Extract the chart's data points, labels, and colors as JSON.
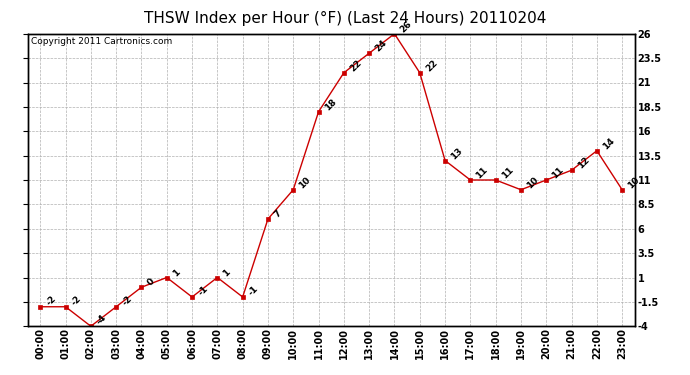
{
  "title": "THSW Index per Hour (°F) (Last 24 Hours) 20110204",
  "copyright": "Copyright 2011 Cartronics.com",
  "hours": [
    "00:00",
    "01:00",
    "02:00",
    "03:00",
    "04:00",
    "05:00",
    "06:00",
    "07:00",
    "08:00",
    "09:00",
    "10:00",
    "11:00",
    "12:00",
    "13:00",
    "14:00",
    "15:00",
    "16:00",
    "17:00",
    "18:00",
    "19:00",
    "20:00",
    "21:00",
    "22:00",
    "23:00"
  ],
  "values": [
    -2,
    -2,
    -4,
    -2,
    0,
    1,
    -1,
    1,
    -1,
    7,
    10,
    18,
    22,
    24,
    26,
    22,
    13,
    11,
    11,
    10,
    11,
    12,
    14,
    10
  ],
  "line_color": "#cc0000",
  "marker_color": "#cc0000",
  "bg_color": "#ffffff",
  "grid_color": "#b0b0b0",
  "ylim": [
    -4.0,
    26.0
  ],
  "yticks": [
    -4.0,
    -1.5,
    1.0,
    3.5,
    6.0,
    8.5,
    11.0,
    13.5,
    16.0,
    18.5,
    21.0,
    23.5,
    26.0
  ],
  "title_fontsize": 11,
  "label_fontsize": 6.5,
  "tick_fontsize": 7,
  "copyright_fontsize": 6.5
}
